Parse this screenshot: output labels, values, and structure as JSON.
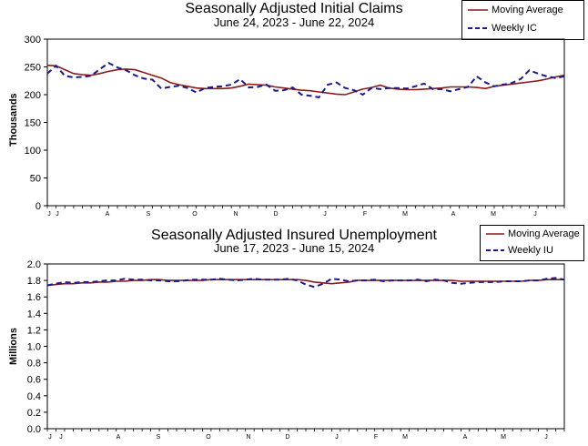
{
  "colors": {
    "moving_average": "#8b1a1a",
    "weekly": "#1a1a8c"
  },
  "chart_data": [
    {
      "type": "line",
      "title": "Seasonally Adjusted Initial Claims",
      "subtitle": "June 24, 2023 - June 22, 2024",
      "ylabel": "Thousands",
      "ylim": [
        0,
        300
      ],
      "yticks": [
        "0",
        "50",
        "100",
        "150",
        "200",
        "250",
        "300"
      ],
      "month_labels": [
        "J",
        "J",
        "A",
        "S",
        "O",
        "N",
        "D",
        "J",
        "F",
        "M",
        "A",
        "M",
        "J"
      ],
      "legend_placement": "top-right",
      "grid": false,
      "series": [
        {
          "name": "Moving Average",
          "style": "solid",
          "values": [
            253,
            252,
            245,
            238,
            236,
            235,
            238,
            242,
            245,
            246,
            245,
            240,
            235,
            230,
            222,
            218,
            215,
            212,
            211,
            211,
            211,
            212,
            215,
            219,
            218,
            217,
            214,
            212,
            210,
            208,
            207,
            205,
            203,
            201,
            200,
            205,
            210,
            213,
            217,
            212,
            210,
            209,
            209,
            210,
            211,
            212,
            214,
            214,
            214,
            213,
            211,
            215,
            217,
            219,
            221,
            223,
            225,
            228,
            232,
            235
          ]
        },
        {
          "name": "Weekly IC",
          "style": "dashed",
          "values": [
            238,
            252,
            234,
            231,
            232,
            234,
            246,
            257,
            249,
            244,
            235,
            229,
            227,
            211,
            214,
            216,
            212,
            204,
            212,
            214,
            215,
            218,
            228,
            213,
            214,
            218,
            207,
            208,
            213,
            200,
            198,
            195,
            218,
            222,
            212,
            208,
            200,
            212,
            210,
            212,
            212,
            211,
            215,
            220,
            210,
            210,
            206,
            210,
            214,
            233,
            222,
            215,
            218,
            221,
            228,
            244,
            238,
            233,
            230,
            233
          ]
        }
      ]
    },
    {
      "type": "line",
      "title": "Seasonally Adjusted Insured Unemployment",
      "subtitle": "June 17, 2023 - June 15, 2024",
      "ylabel": "Millions",
      "ylim": [
        0.0,
        2.0
      ],
      "yticks": [
        "0.0",
        "0.2",
        "0.4",
        "0.6",
        "0.8",
        "1.0",
        "1.2",
        "1.4",
        "1.6",
        "1.8",
        "2.0"
      ],
      "month_labels": [
        "J",
        "J",
        "A",
        "S",
        "O",
        "N",
        "D",
        "J",
        "F",
        "M",
        "A",
        "M",
        "J"
      ],
      "legend_placement": "top-right",
      "grid": false,
      "series": [
        {
          "name": "Moving Average",
          "style": "solid",
          "values": [
            1.74,
            1.75,
            1.76,
            1.76,
            1.77,
            1.77,
            1.78,
            1.78,
            1.79,
            1.79,
            1.8,
            1.8,
            1.81,
            1.81,
            1.8,
            1.8,
            1.8,
            1.8,
            1.8,
            1.81,
            1.81,
            1.81,
            1.81,
            1.81,
            1.81,
            1.81,
            1.81,
            1.81,
            1.81,
            1.81,
            1.8,
            1.78,
            1.77,
            1.76,
            1.77,
            1.78,
            1.8,
            1.8,
            1.8,
            1.8,
            1.8,
            1.8,
            1.8,
            1.8,
            1.8,
            1.8,
            1.8,
            1.8,
            1.79,
            1.79,
            1.79,
            1.79,
            1.79,
            1.79,
            1.79,
            1.79,
            1.8,
            1.8,
            1.81,
            1.81,
            1.81
          ]
        },
        {
          "name": "Weekly IU",
          "style": "dashed",
          "values": [
            1.74,
            1.76,
            1.78,
            1.77,
            1.78,
            1.78,
            1.79,
            1.8,
            1.8,
            1.82,
            1.81,
            1.81,
            1.8,
            1.8,
            1.79,
            1.79,
            1.8,
            1.81,
            1.81,
            1.81,
            1.82,
            1.81,
            1.8,
            1.81,
            1.82,
            1.81,
            1.81,
            1.81,
            1.82,
            1.8,
            1.75,
            1.72,
            1.76,
            1.82,
            1.81,
            1.79,
            1.8,
            1.8,
            1.81,
            1.79,
            1.8,
            1.8,
            1.8,
            1.81,
            1.79,
            1.81,
            1.8,
            1.77,
            1.76,
            1.77,
            1.78,
            1.78,
            1.78,
            1.79,
            1.79,
            1.79,
            1.8,
            1.8,
            1.82,
            1.83,
            1.81
          ]
        }
      ]
    }
  ]
}
